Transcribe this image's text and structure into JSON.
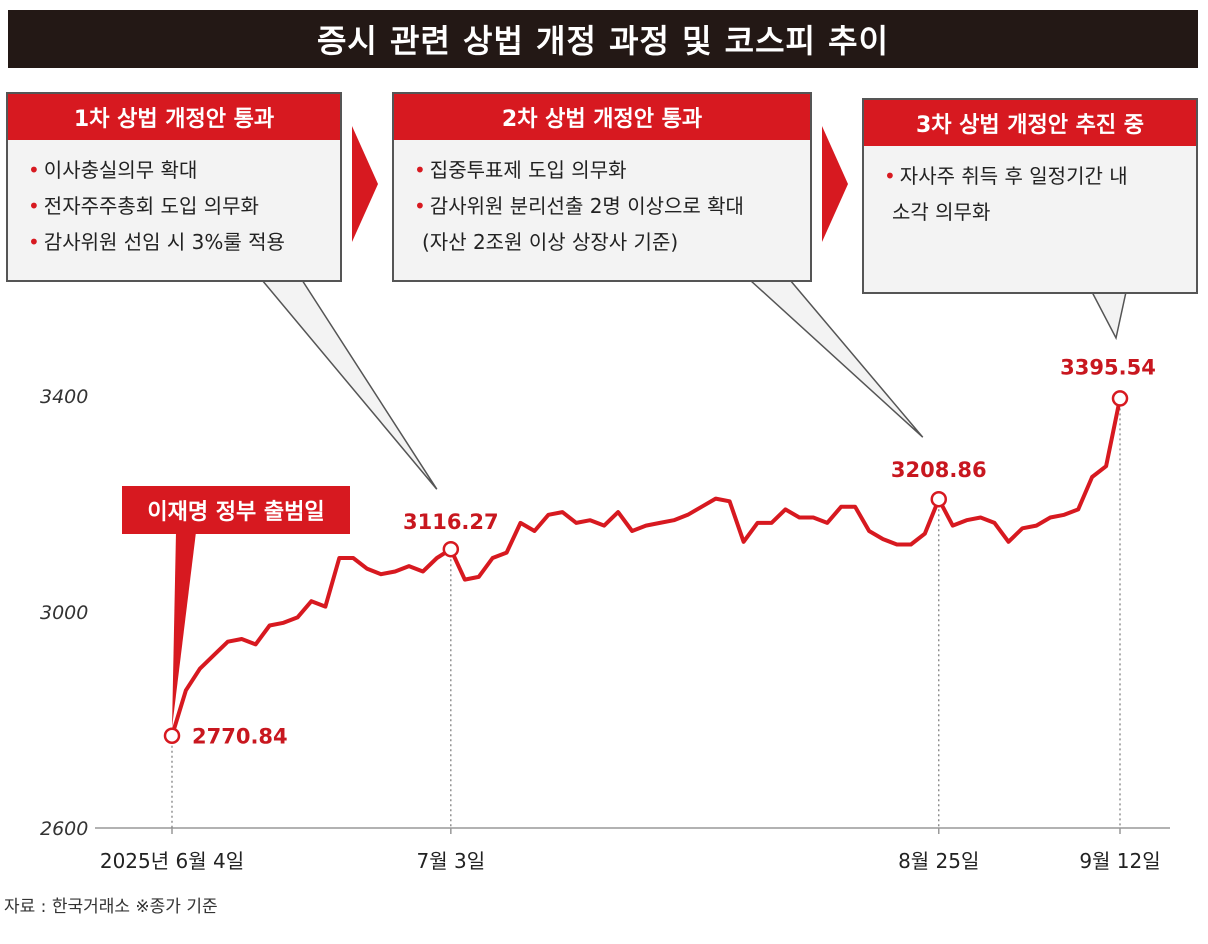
{
  "title": "증시 관련 상법 개정 과정 및 코스피 추이",
  "boxes": [
    {
      "head": "1차 상법 개정안 통과",
      "items": [
        "이사충실의무 확대",
        "전자주주총회 도입 의무화",
        "감사위원 선임 시 3%룰 적용"
      ]
    },
    {
      "head": "2차 상법 개정안 통과",
      "items": [
        "집중투표제 도입 의무화",
        "감사위원 분리선출 2명 이상으로 확대"
      ],
      "note": "(자산 2조원 이상 상장사 기준)"
    },
    {
      "head": "3차 상법 개정안 추진 중",
      "items": [
        "자사주 취득 후 일정기간 내"
      ],
      "cont": "소각 의무화"
    }
  ],
  "event_label": "이재명 정부 출범일",
  "source": "자료 : 한국거래소 ※종가 기준",
  "colors": {
    "accent": "#d71920",
    "title_bg": "#231815",
    "box_bg": "#f3f3f3"
  },
  "chart_data": {
    "type": "line",
    "title": "증시 관련 상법 개정 과정 및 코스피 추이",
    "y_ticks": [
      "3400",
      "3000",
      "2600"
    ],
    "y_tick_values": [
      3400,
      3000,
      2600
    ],
    "ylim": [
      2600,
      3400
    ],
    "x_ticks": [
      "2025년 6월 4일",
      "7월 3일",
      "8월 25일",
      "9월 12일"
    ],
    "x_tick_index": [
      0,
      20,
      55,
      68
    ],
    "values": [
      2770.84,
      2855,
      2895,
      2920,
      2945,
      2950,
      2940,
      2975,
      2980,
      2990,
      3020,
      3010,
      3100,
      3100,
      3080,
      3070,
      3075,
      3085,
      3075,
      3100,
      3116.27,
      3060,
      3065,
      3100,
      3110,
      3165,
      3150,
      3180,
      3185,
      3165,
      3170,
      3160,
      3185,
      3150,
      3160,
      3165,
      3170,
      3180,
      3195,
      3210,
      3205,
      3130,
      3165,
      3165,
      3190,
      3175,
      3175,
      3165,
      3195,
      3195,
      3150,
      3135,
      3125,
      3125,
      3145,
      3208.86,
      3160,
      3170,
      3175,
      3165,
      3130,
      3155,
      3160,
      3175,
      3180,
      3190,
      3250,
      3270,
      3395.54
    ],
    "highlights": [
      {
        "index": 0,
        "label": "2770.84"
      },
      {
        "index": 20,
        "label": "3116.27"
      },
      {
        "index": 55,
        "label": "3208.86"
      },
      {
        "index": 68,
        "label": "3395.54"
      }
    ]
  }
}
